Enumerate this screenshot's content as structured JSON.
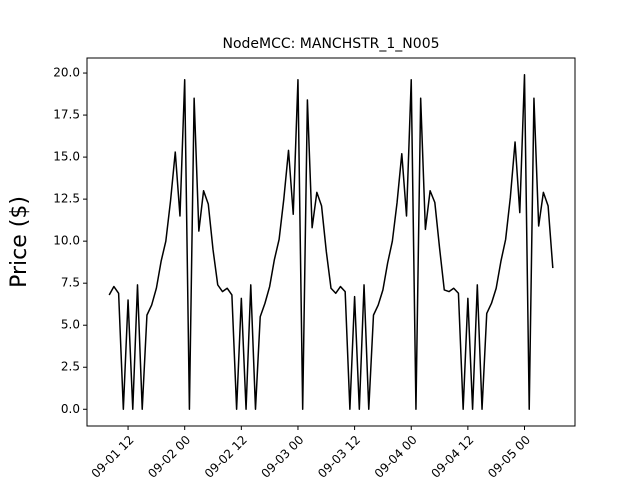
{
  "chart_data": {
    "type": "line",
    "title": "NodeMCC: MANCHSTR_1_N005",
    "y_label": "Price ($)",
    "color": "#000000",
    "x": [
      8,
      9,
      10,
      11,
      12,
      13,
      14,
      15,
      16,
      17,
      18,
      19,
      20,
      21,
      22,
      23,
      24,
      25,
      26,
      27,
      28,
      29,
      30,
      31,
      32,
      33,
      34,
      35,
      36,
      37,
      38,
      39,
      40,
      41,
      42,
      43,
      44,
      45,
      46,
      47,
      48,
      49,
      50,
      51,
      52,
      53,
      54,
      55,
      56,
      57,
      58,
      59,
      60,
      61,
      62,
      63,
      64,
      65,
      66,
      67,
      68,
      69,
      70,
      71,
      72,
      73,
      74,
      75,
      76,
      77,
      78,
      79,
      80,
      81,
      82,
      83,
      84,
      85,
      86,
      87,
      88,
      89,
      90,
      91,
      92,
      93,
      94,
      95,
      96,
      97,
      98,
      99,
      100,
      101,
      102
    ],
    "values": [
      6.8,
      7.3,
      6.9,
      0,
      6.5,
      0,
      7.4,
      0,
      5.6,
      6.2,
      7.2,
      8.8,
      10.0,
      12.4,
      15.3,
      11.5,
      19.6,
      0,
      18.5,
      10.6,
      13.0,
      12.2,
      9.5,
      7.4,
      7.0,
      7.2,
      6.8,
      0,
      6.6,
      0,
      7.4,
      0,
      5.5,
      6.3,
      7.3,
      8.9,
      10.1,
      12.5,
      15.4,
      11.6,
      19.6,
      0,
      18.4,
      10.8,
      12.9,
      12.1,
      9.4,
      7.2,
      6.9,
      7.3,
      7.0,
      0,
      6.7,
      0,
      7.4,
      0,
      5.6,
      6.2,
      7.1,
      8.7,
      10.0,
      12.3,
      15.2,
      11.5,
      19.6,
      0,
      18.5,
      10.7,
      13.0,
      12.3,
      9.6,
      7.1,
      7.0,
      7.2,
      6.9,
      0,
      6.6,
      0,
      7.4,
      0,
      5.7,
      6.3,
      7.2,
      8.8,
      10.1,
      12.6,
      15.9,
      11.7,
      19.9,
      0,
      18.5,
      10.9,
      12.9,
      12.1,
      8.4
    ],
    "xlim": [
      3.3,
      106.7
    ],
    "xticks": [
      {
        "value": 12,
        "label": "09-01 12"
      },
      {
        "value": 24,
        "label": "09-02 00"
      },
      {
        "value": 36,
        "label": "09-02 12"
      },
      {
        "value": 48,
        "label": "09-03 00"
      },
      {
        "value": 60,
        "label": "09-03 12"
      },
      {
        "value": 72,
        "label": "09-04 00"
      },
      {
        "value": 84,
        "label": "09-04 12"
      },
      {
        "value": 96,
        "label": "09-05 00"
      }
    ],
    "ylim": [
      -0.995,
      20.895
    ],
    "yticks": [
      {
        "value": 0,
        "label": "0.0"
      },
      {
        "value": 2.5,
        "label": "2.5"
      },
      {
        "value": 5,
        "label": "5.0"
      },
      {
        "value": 7.5,
        "label": "7.5"
      },
      {
        "value": 10,
        "label": "10.0"
      },
      {
        "value": 12.5,
        "label": "12.5"
      },
      {
        "value": 15,
        "label": "15.0"
      },
      {
        "value": 17.5,
        "label": "17.5"
      },
      {
        "value": 20,
        "label": "20.0"
      }
    ]
  }
}
